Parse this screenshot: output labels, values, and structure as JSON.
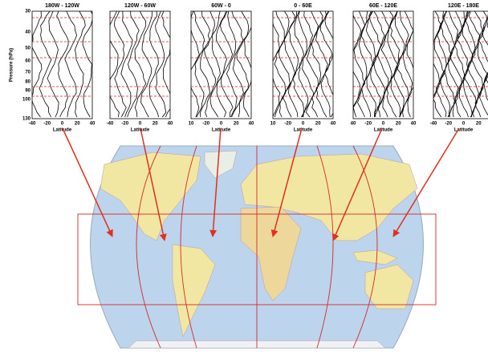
{
  "y_axis_label": "Pressure (hPa)",
  "y_ticks": [
    "30",
    "40",
    "50",
    "60",
    "70",
    "80",
    "90",
    "100",
    "130"
  ],
  "x_axis_label": "Latitude",
  "panels": [
    {
      "title": "180W - 120W",
      "x_ticks": [
        "-40",
        "-20",
        "0",
        "20",
        "40"
      ]
    },
    {
      "title": "120W - 60W",
      "x_ticks": [
        "-40",
        "-20",
        "0",
        "20",
        "40"
      ]
    },
    {
      "title": "60W - 0",
      "x_ticks": [
        "10",
        "-20",
        "0",
        "20",
        "40"
      ]
    },
    {
      "title": "0 - 60E",
      "x_ticks": [
        "10",
        "-20",
        "0",
        "20",
        "40"
      ]
    },
    {
      "title": "60E - 120E",
      "x_ticks": [
        "40",
        "-20",
        "0",
        "20",
        "40"
      ]
    },
    {
      "title": "120E - 180E",
      "x_ticks": [
        "-40",
        "-20",
        "0",
        "20"
      ]
    }
  ]
}
